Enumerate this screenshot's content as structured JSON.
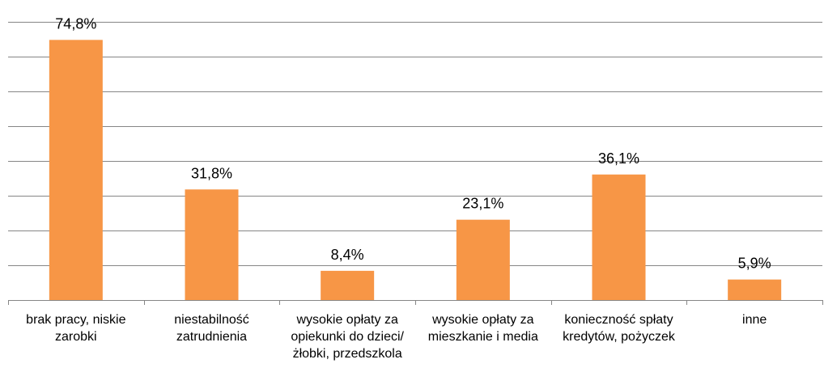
{
  "chart_data": {
    "type": "bar",
    "categories": [
      "brak pracy, niskie zarobki",
      "niestabilność zatrudnienia",
      "wysokie opłaty za opiekunki do dzieci/ żłobki, przedszkola",
      "wysokie opłaty za mieszkanie i media",
      "konieczność spłaty kredytów, pożyczek",
      "inne"
    ],
    "values": [
      74.8,
      31.8,
      8.4,
      23.1,
      36.1,
      5.9
    ],
    "value_labels": [
      "74,8%",
      "31,8%",
      "8,4%",
      "23,1%",
      "36,1%",
      "5,9%"
    ],
    "color": "#f79646",
    "ylim": [
      0,
      80
    ],
    "yticks": [
      0,
      10,
      20,
      30,
      40,
      50,
      60,
      70,
      80
    ],
    "grid": true
  }
}
